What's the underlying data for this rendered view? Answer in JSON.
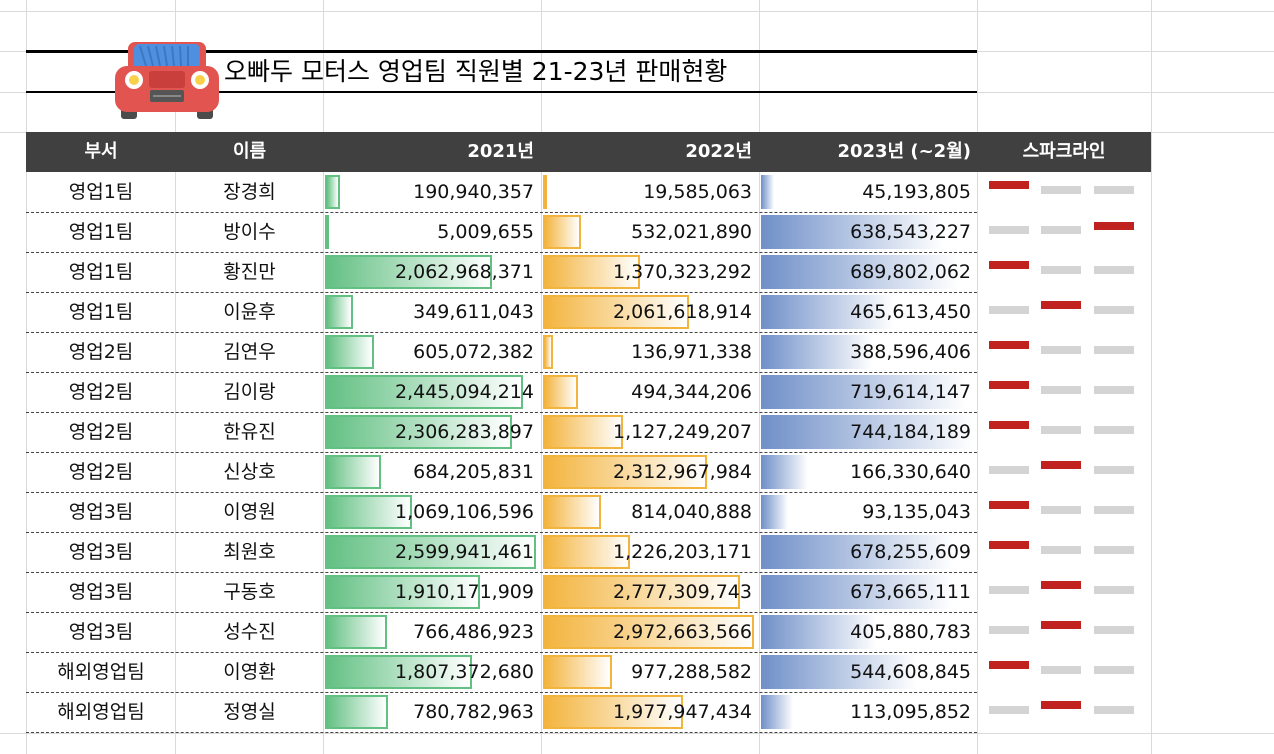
{
  "title": "오빠두 모터스 영업팀 직원별 21-23년 판매현황",
  "logo_icon": "car-icon",
  "colors": {
    "header_bg": "#404040",
    "bar_2021": "#63c083",
    "bar_2022": "#f3b43e",
    "bar_2023": "#6f8fc8",
    "spark_high": "#c0231f",
    "spark_other": "#d4d4d4"
  },
  "table": {
    "headers": {
      "dept": "부서",
      "name": "이름",
      "y2021": "2021년",
      "y2022": "2022년",
      "y2023": "2023년 (~2월)",
      "sparkline": "스파크라인"
    },
    "rows": [
      {
        "dept": "영업1팀",
        "name": "장경희",
        "y2021": "190,940,357",
        "y2022": "19,585,063",
        "y2023": "45,193,805",
        "high": 0,
        "v2021": 190940357,
        "v2022": 19585063,
        "v2023": 45193805
      },
      {
        "dept": "영업1팀",
        "name": "방이수",
        "y2021": "5,009,655",
        "y2022": "532,021,890",
        "y2023": "638,543,227",
        "high": 2,
        "v2021": 5009655,
        "v2022": 532021890,
        "v2023": 638543227
      },
      {
        "dept": "영업1팀",
        "name": "황진만",
        "y2021": "2,062,968,371",
        "y2022": "1,370,323,292",
        "y2023": "689,802,062",
        "high": 0,
        "v2021": 2062968371,
        "v2022": 1370323292,
        "v2023": 689802062
      },
      {
        "dept": "영업1팀",
        "name": "이윤후",
        "y2021": "349,611,043",
        "y2022": "2,061,618,914",
        "y2023": "465,613,450",
        "high": 1,
        "v2021": 349611043,
        "v2022": 2061618914,
        "v2023": 465613450
      },
      {
        "dept": "영업2팀",
        "name": "김연우",
        "y2021": "605,072,382",
        "y2022": "136,971,338",
        "y2023": "388,596,406",
        "high": 0,
        "v2021": 605072382,
        "v2022": 136971338,
        "v2023": 388596406
      },
      {
        "dept": "영업2팀",
        "name": "김이랑",
        "y2021": "2,445,094,214",
        "y2022": "494,344,206",
        "y2023": "719,614,147",
        "high": 0,
        "v2021": 2445094214,
        "v2022": 494344206,
        "v2023": 719614147
      },
      {
        "dept": "영업2팀",
        "name": "한유진",
        "y2021": "2,306,283,897",
        "y2022": "1,127,249,207",
        "y2023": "744,184,189",
        "high": 0,
        "v2021": 2306283897,
        "v2022": 1127249207,
        "v2023": 744184189
      },
      {
        "dept": "영업2팀",
        "name": "신상호",
        "y2021": "684,205,831",
        "y2022": "2,312,967,984",
        "y2023": "166,330,640",
        "high": 1,
        "v2021": 684205831,
        "v2022": 2312967984,
        "v2023": 166330640
      },
      {
        "dept": "영업3팀",
        "name": "이영원",
        "y2021": "1,069,106,596",
        "y2022": "814,040,888",
        "y2023": "93,135,043",
        "high": 0,
        "v2021": 1069106596,
        "v2022": 814040888,
        "v2023": 93135043
      },
      {
        "dept": "영업3팀",
        "name": "최원호",
        "y2021": "2,599,941,461",
        "y2022": "1,226,203,171",
        "y2023": "678,255,609",
        "high": 0,
        "v2021": 2599941461,
        "v2022": 1226203171,
        "v2023": 678255609
      },
      {
        "dept": "영업3팀",
        "name": "구동호",
        "y2021": "1,910,171,909",
        "y2022": "2,777,309,743",
        "y2023": "673,665,111",
        "high": 1,
        "v2021": 1910171909,
        "v2022": 2777309743,
        "v2023": 673665111
      },
      {
        "dept": "영업3팀",
        "name": "성수진",
        "y2021": "766,486,923",
        "y2022": "2,972,663,566",
        "y2023": "405,880,783",
        "high": 1,
        "v2021": 766486923,
        "v2022": 2972663566,
        "v2023": 405880783
      },
      {
        "dept": "해외영업팀",
        "name": "이영환",
        "y2021": "1,807,372,680",
        "y2022": "977,288,582",
        "y2023": "544,608,845",
        "high": 0,
        "v2021": 1807372680,
        "v2022": 977288582,
        "v2023": 544608845
      },
      {
        "dept": "해외영업팀",
        "name": "정영실",
        "y2021": "780,782,963",
        "y2022": "1,977,947,434",
        "y2023": "113,095,852",
        "high": 1,
        "v2021": 780782963,
        "v2022": 1977947434,
        "v2023": 113095852
      }
    ]
  }
}
